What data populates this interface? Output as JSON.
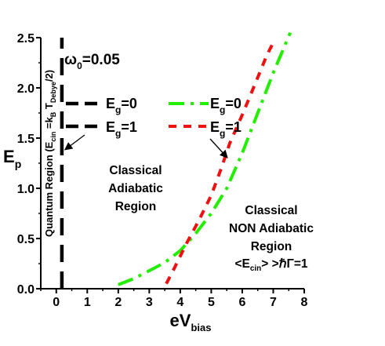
{
  "chart_data": {
    "type": "line",
    "xlabel": "eV",
    "xlabel_sub": "bias",
    "ylabel": "E",
    "ylabel_sub": "p",
    "xlim": [
      -0.5,
      8.0
    ],
    "ylim": [
      0.0,
      2.5
    ],
    "x_ticks": [
      0,
      1,
      2,
      3,
      4,
      5,
      6,
      7,
      8
    ],
    "x_tick_labels": [
      "0",
      "1",
      "2",
      "3",
      "4",
      "5",
      "6",
      "7",
      "8"
    ],
    "y_ticks": [
      0.0,
      0.5,
      1.0,
      1.5,
      2.0,
      2.5
    ],
    "y_tick_labels": [
      "0.0",
      "0.5",
      "1.0",
      "1.5",
      "2.0",
      "2.5"
    ],
    "grid": false,
    "omega_label": {
      "main": "ω",
      "sub": "0",
      "rest": "=0.05"
    },
    "series": [
      {
        "group": "quantum-black",
        "color": "#000000",
        "style": "long-dash",
        "points": [
          [
            0.18,
            0.0
          ],
          [
            0.18,
            2.5
          ]
        ]
      },
      {
        "group": "eg0-green",
        "color": "#22ee00",
        "style": "dash-dot",
        "points": [
          [
            2.0,
            0.04
          ],
          [
            2.5,
            0.1
          ],
          [
            3.0,
            0.18
          ],
          [
            3.5,
            0.26
          ],
          [
            4.0,
            0.38
          ],
          [
            4.5,
            0.55
          ],
          [
            5.0,
            0.75
          ],
          [
            5.5,
            1.0
          ],
          [
            6.0,
            1.35
          ],
          [
            6.5,
            1.75
          ],
          [
            7.0,
            2.15
          ],
          [
            7.55,
            2.55
          ]
        ]
      },
      {
        "group": "eg1-red",
        "color": "#ee1111",
        "style": "dash",
        "points": [
          [
            3.55,
            0.05
          ],
          [
            3.8,
            0.2
          ],
          [
            4.2,
            0.45
          ],
          [
            4.6,
            0.68
          ],
          [
            5.0,
            0.93
          ],
          [
            5.3,
            1.18
          ],
          [
            5.6,
            1.45
          ],
          [
            6.0,
            1.73
          ],
          [
            6.4,
            2.03
          ],
          [
            6.8,
            2.33
          ],
          [
            7.0,
            2.45
          ]
        ]
      }
    ],
    "legend": {
      "items": [
        {
          "label_main": "E",
          "label_sub": "g",
          "label_rest": "=0",
          "color": "#000000",
          "style": "long-dash"
        },
        {
          "label_main": "E",
          "label_sub": "g",
          "label_rest": "=1",
          "color": "#000000",
          "style": "long-dash"
        },
        {
          "label_main": "E",
          "label_sub": "g",
          "label_rest": "=0",
          "color": "#22ee00",
          "style": "dash-dot"
        },
        {
          "label_main": "E",
          "label_sub": "g",
          "label_rest": "=1",
          "color": "#ee1111",
          "style": "dash"
        }
      ]
    },
    "annotations": {
      "quantum_region": {
        "prefix": "Quantum Region (E",
        "cin_sub": "cin",
        "eq": " =k",
        "b_sub": "B",
        "t": " T",
        "debye_sub": "Debye",
        "suffix": "/2)"
      },
      "classical_adiabatic": [
        "Classical",
        "Adiabatic",
        "Region"
      ],
      "classical_nonadiabatic": [
        "Classical",
        "NON Adiabatic",
        "Region"
      ],
      "condition": {
        "prefix": "<E",
        "sub": "cin",
        "suffix": "> >ℏΓ=1"
      }
    }
  }
}
